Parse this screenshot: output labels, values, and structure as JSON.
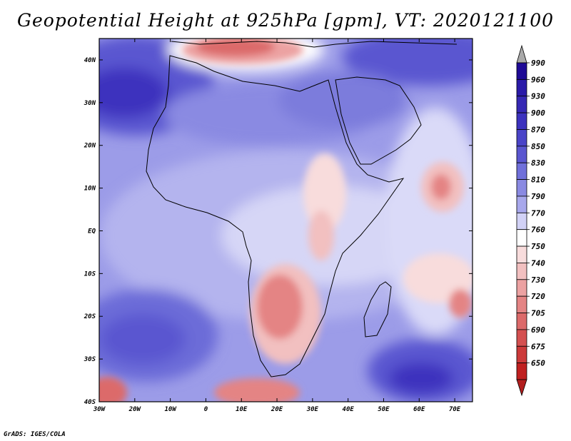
{
  "title": "Geopotential Height at 925hPa [gpm], VT: 2020121100",
  "credit": "GrADS: IGES/COLA",
  "map": {
    "projection": "lat-lon",
    "lon_range_deg": [
      -30,
      75
    ],
    "lat_range_deg": [
      -40,
      45
    ],
    "lat_ticks": [
      {
        "lat": 40,
        "label": "40N"
      },
      {
        "lat": 30,
        "label": "30N"
      },
      {
        "lat": 20,
        "label": "20N"
      },
      {
        "lat": 10,
        "label": "10N"
      },
      {
        "lat": 0,
        "label": "EQ"
      },
      {
        "lat": -10,
        "label": "10S"
      },
      {
        "lat": -20,
        "label": "20S"
      },
      {
        "lat": -30,
        "label": "30S"
      },
      {
        "lat": -40,
        "label": "40S"
      }
    ],
    "lon_ticks": [
      {
        "lon": -30,
        "label": "30W"
      },
      {
        "lon": -20,
        "label": "20W"
      },
      {
        "lon": -10,
        "label": "10W"
      },
      {
        "lon": 0,
        "label": "0"
      },
      {
        "lon": 10,
        "label": "10E"
      },
      {
        "lon": 20,
        "label": "20E"
      },
      {
        "lon": 30,
        "label": "30E"
      },
      {
        "lon": 40,
        "label": "40E"
      },
      {
        "lon": 50,
        "label": "50E"
      },
      {
        "lon": 60,
        "label": "60E"
      },
      {
        "lon": 70,
        "label": "70E"
      }
    ]
  },
  "colorbar": {
    "levels": [
      {
        "label": "990",
        "color": "#1e0a96"
      },
      {
        "label": "960",
        "color": "#2a1aa8"
      },
      {
        "label": "930",
        "color": "#3628b4"
      },
      {
        "label": "900",
        "color": "#3c32be"
      },
      {
        "label": "870",
        "color": "#4a44c8"
      },
      {
        "label": "850",
        "color": "#5a56d0"
      },
      {
        "label": "830",
        "color": "#7070da"
      },
      {
        "label": "810",
        "color": "#8a8ae2"
      },
      {
        "label": "790",
        "color": "#a8a8ec"
      },
      {
        "label": "770",
        "color": "#d2d2f6"
      },
      {
        "label": "760",
        "color": "#ffffff"
      },
      {
        "label": "750",
        "color": "#f8dcdc"
      },
      {
        "label": "740",
        "color": "#f2c0c0"
      },
      {
        "label": "730",
        "color": "#eca2a2"
      },
      {
        "label": "720",
        "color": "#e48484"
      },
      {
        "label": "705",
        "color": "#dc6a6a"
      },
      {
        "label": "690",
        "color": "#d45050"
      },
      {
        "label": "675",
        "color": "#cc3a3a"
      },
      {
        "label": "650",
        "color": "#c02020"
      }
    ],
    "top_arrow_color": "#a9a9a9",
    "bottom_arrow_color": "#b21e1e"
  }
}
